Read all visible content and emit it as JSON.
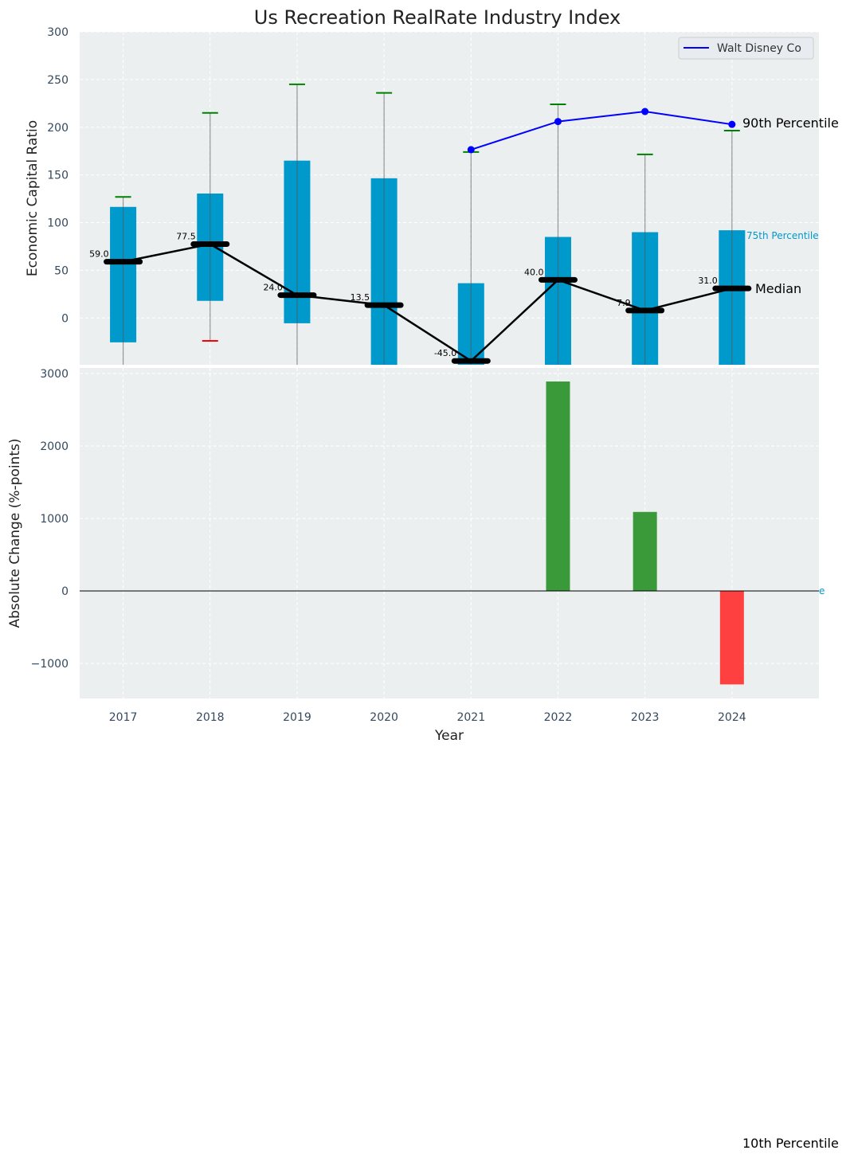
{
  "chart_data": [
    {
      "type": "bar",
      "title": "Us Recreation RealRate Industry Index",
      "xlabel": "",
      "ylabel": "Economic Capital Ratio",
      "ylim": [
        -49,
        300
      ],
      "xlim": [
        2016.5,
        2025
      ],
      "yticks": [
        0,
        50,
        100,
        150,
        200,
        250,
        300
      ],
      "grid": true,
      "categories": [
        2017,
        2018,
        2019,
        2020,
        2021,
        2022,
        2023,
        2024
      ],
      "p25": [
        -25.5,
        18,
        -5.5,
        -60,
        -60,
        -60,
        -60,
        -60
      ],
      "p75": [
        116.5,
        130.5,
        165,
        146.5,
        36.5,
        85,
        90,
        92
      ],
      "p90": [
        127,
        215,
        245,
        236,
        174,
        224,
        171.5,
        196.5
      ],
      "p10": [
        -60,
        -24,
        -60,
        -60,
        -60,
        -60,
        -60,
        -60
      ],
      "median": [
        59.0,
        77.5,
        24.0,
        13.5,
        -45.0,
        40.0,
        7.9,
        31.0
      ],
      "median_labels": [
        "59.0",
        "77.5",
        "24.0",
        "13.5",
        "-45.0",
        "40.0",
        "7.9",
        "31.0"
      ],
      "series": [
        {
          "name": "Walt Disney Co",
          "x": [
            2021,
            2022,
            2023,
            2024
          ],
          "values": [
            176.5,
            206,
            216.5,
            203
          ],
          "color": "#0000ff"
        }
      ],
      "legend": {
        "entries": [
          "Walt Disney Co"
        ],
        "placement": "top-right"
      },
      "annotations": {
        "p90": "90th Percentile",
        "p75": "75th Percentile",
        "median": "Median",
        "p10": "10th Percentile",
        "p25_fragment": "e"
      },
      "colors": {
        "box": "#0099cc",
        "upper_cap": "#008000",
        "lower_cap": "#ff0000",
        "median": "#000000"
      }
    },
    {
      "type": "bar",
      "xlabel": "Year",
      "ylabel": "Absolute Change (%-points)",
      "ylim": [
        -1484,
        3077
      ],
      "yticks": [
        -1000,
        0,
        1000,
        2000,
        3000
      ],
      "ytick_labels": [
        "−1000",
        "0",
        "1000",
        "2000",
        "3000"
      ],
      "categories": [
        2017,
        2018,
        2019,
        2020,
        2021,
        2022,
        2023,
        2024
      ],
      "values": [
        0,
        0,
        0,
        0,
        0,
        2890,
        1090,
        -1290
      ],
      "colors": {
        "positive": "#3a9a3a",
        "negative": "#ff4040"
      }
    }
  ]
}
